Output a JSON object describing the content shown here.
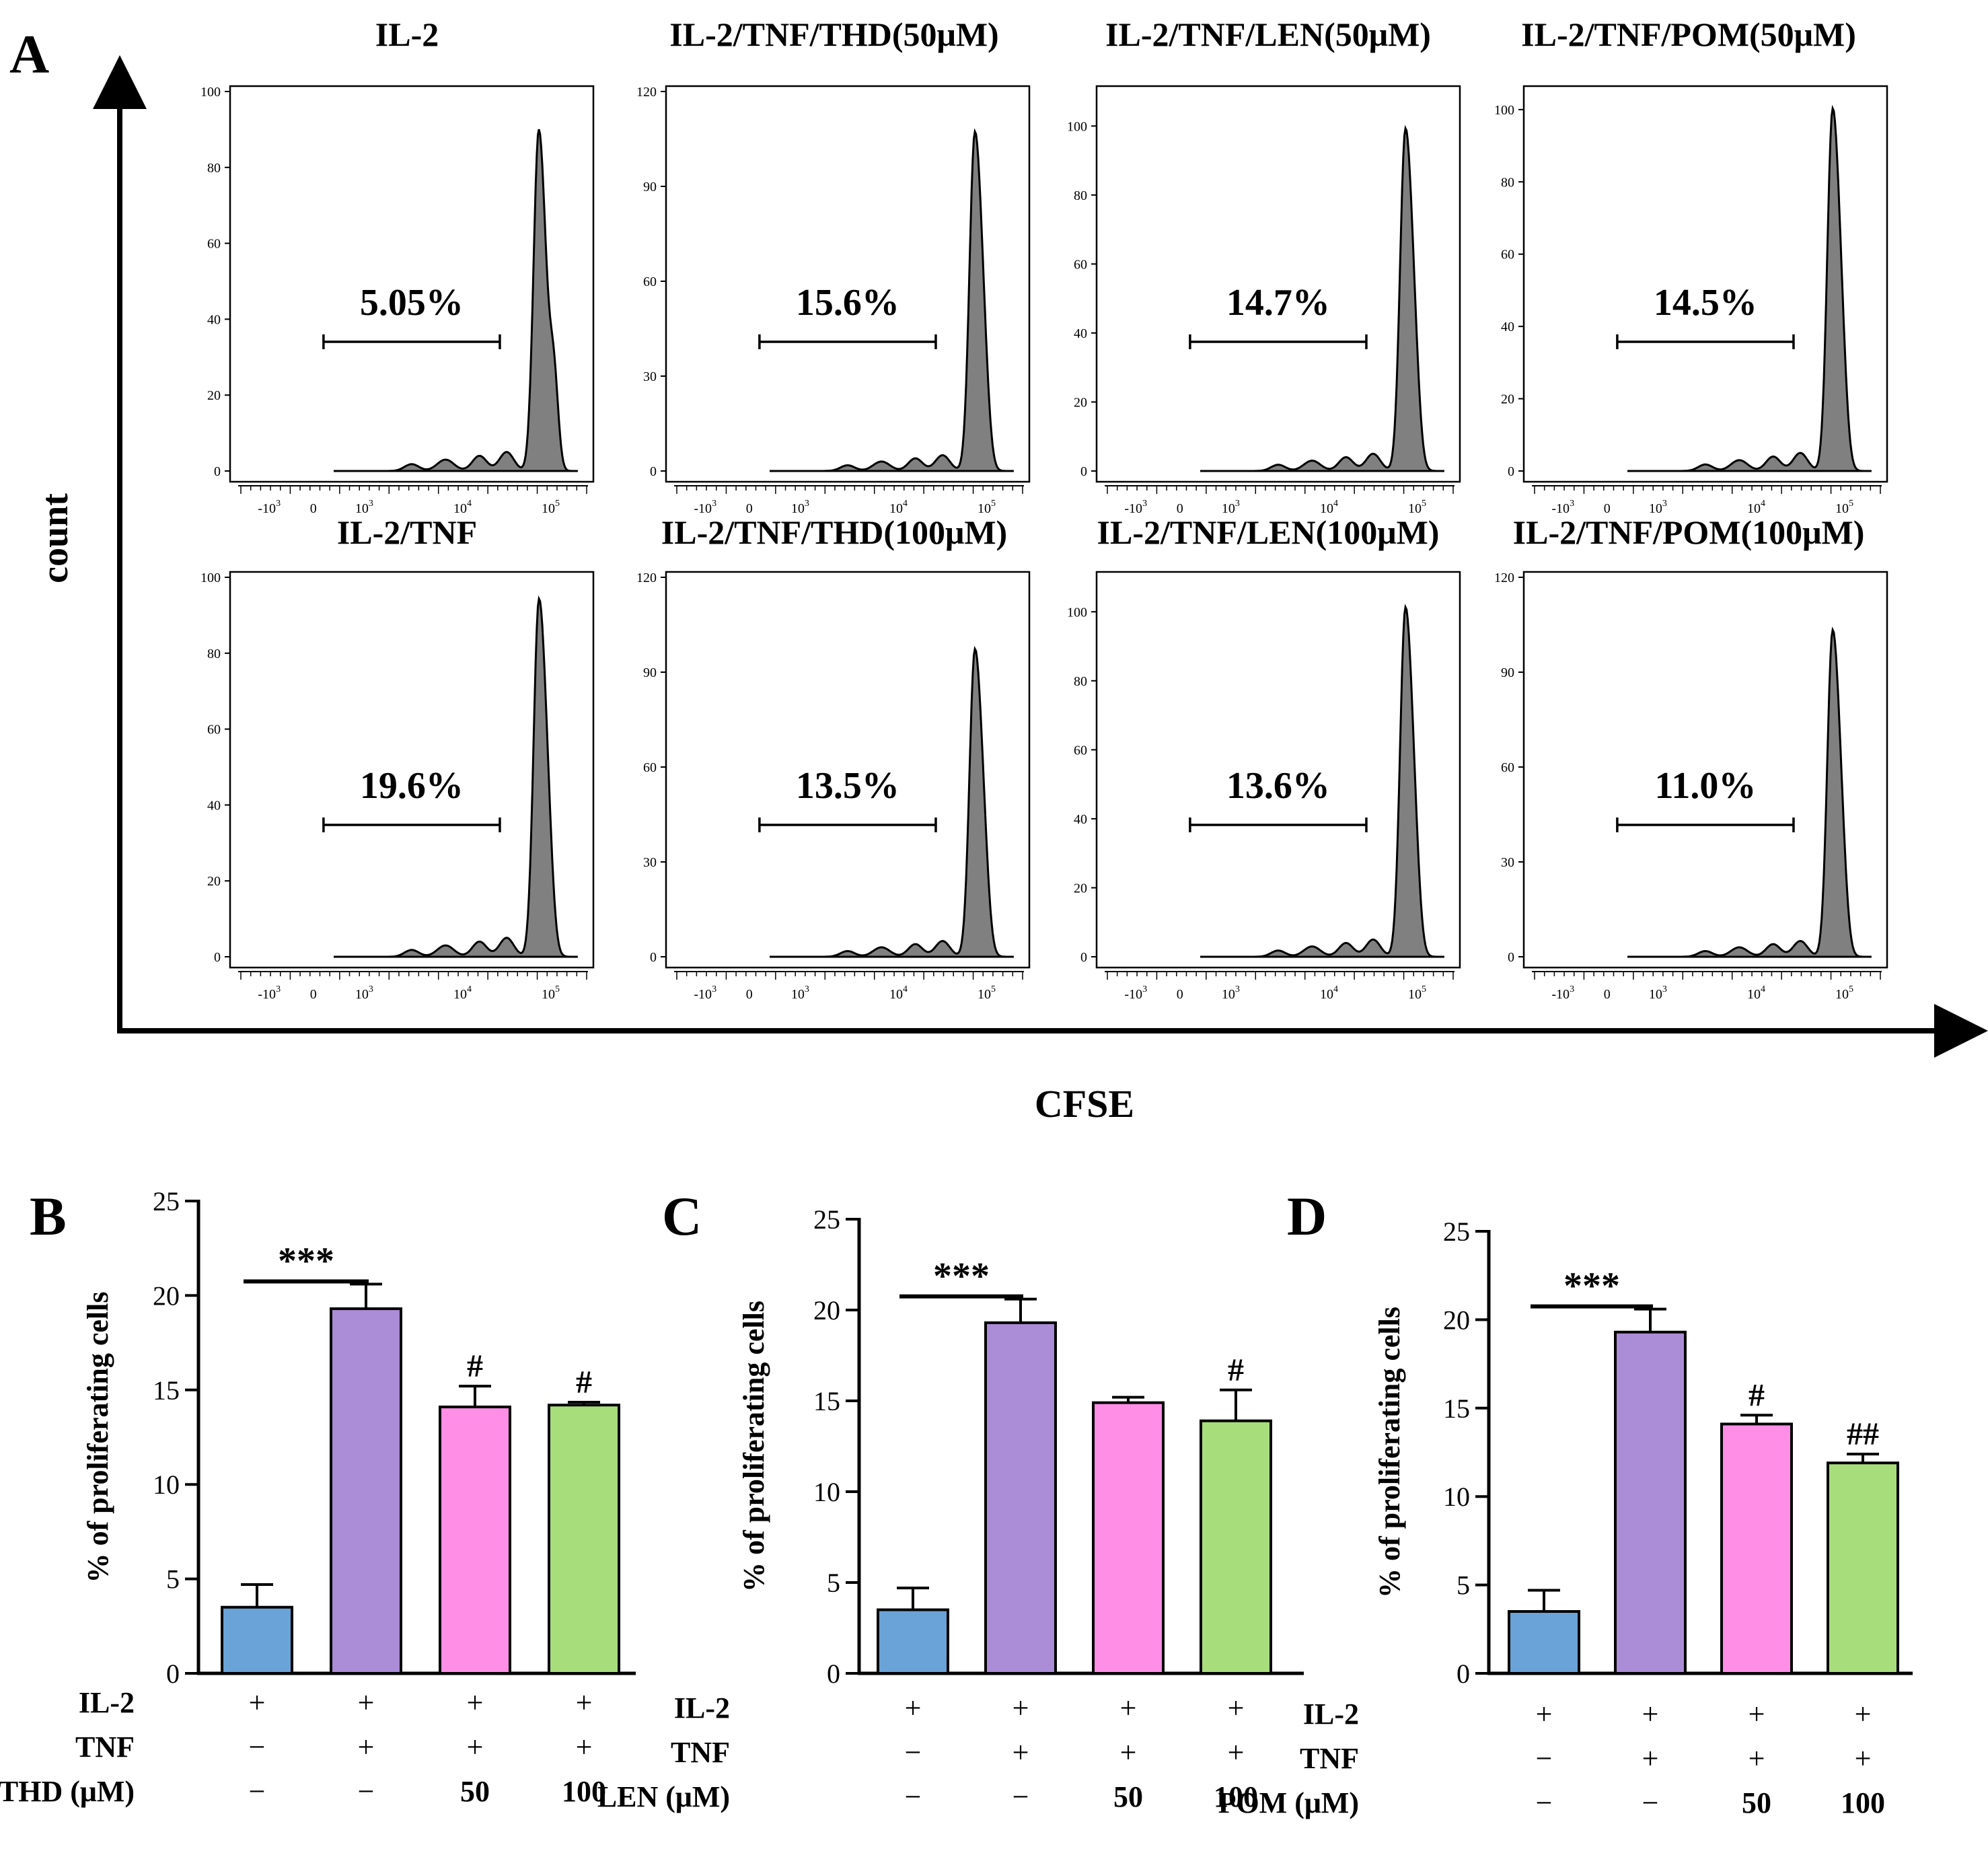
{
  "figure_labels": {
    "A": "A",
    "B": "B",
    "C": "C",
    "D": "D"
  },
  "panel_a": {
    "y_axis_label": "count",
    "x_axis_label": "CFSE"
  },
  "chart_data": [
    {
      "type": "histogram",
      "id": "flow-histograms",
      "x_axis_label": "CFSE",
      "y_axis_label": "count",
      "x_ticks": [
        {
          "base": "-10",
          "exp": "3"
        },
        {
          "base": "0",
          "exp": ""
        },
        {
          "base": "10",
          "exp": "3"
        },
        {
          "base": "10",
          "exp": "4"
        },
        {
          "base": "10",
          "exp": "5"
        }
      ],
      "panels": [
        {
          "title": "IL-2",
          "percent": "5.05%",
          "y_ticks": [
            "0",
            "20",
            "40",
            "60",
            "80",
            "100"
          ],
          "ymax": 100,
          "peak": 90,
          "shoulder": true
        },
        {
          "title": "IL-2/TNF/THD(50μM)",
          "percent": "15.6%",
          "y_ticks": [
            "0",
            "30",
            "60",
            "90",
            "120"
          ],
          "ymax": 120,
          "peak": 106,
          "shoulder": false
        },
        {
          "title": "IL-2/TNF/LEN(50μM)",
          "percent": "14.7%",
          "y_ticks": [
            "0",
            "20",
            "40",
            "60",
            "80",
            "100"
          ],
          "ymax": 110,
          "peak": 98,
          "shoulder": false
        },
        {
          "title": "IL-2/TNF/POM(50μM)",
          "percent": "14.5%",
          "y_ticks": [
            "0",
            "20",
            "40",
            "60",
            "80",
            "100"
          ],
          "ymax": 105,
          "peak": 99,
          "shoulder": false
        },
        {
          "title": "IL-2/TNF",
          "percent": "19.6%",
          "y_ticks": [
            "0",
            "20",
            "40",
            "60",
            "80",
            "100"
          ],
          "ymax": 100,
          "peak": 93,
          "shoulder": false
        },
        {
          "title": "IL-2/TNF/THD(100μM)",
          "percent": "13.5%",
          "y_ticks": [
            "0",
            "30",
            "60",
            "90",
            "120"
          ],
          "ymax": 120,
          "peak": 96,
          "shoulder": false
        },
        {
          "title": "IL-2/TNF/LEN(100μM)",
          "percent": "13.6%",
          "y_ticks": [
            "0",
            "20",
            "40",
            "60",
            "80",
            "100"
          ],
          "ymax": 110,
          "peak": 100,
          "shoulder": false
        },
        {
          "title": "IL-2/TNF/POM(100μM)",
          "percent": "11.0%",
          "y_ticks": [
            "0",
            "30",
            "60",
            "90",
            "120"
          ],
          "ymax": 120,
          "peak": 102,
          "shoulder": false
        }
      ]
    },
    {
      "type": "bar",
      "label": "B",
      "ylabel": "% of proliferating cells",
      "ylim": [
        0,
        25
      ],
      "y_ticks": [
        "0",
        "5",
        "10",
        "15",
        "20",
        "25"
      ],
      "values": [
        3.5,
        19.3,
        14.1,
        14.2
      ],
      "errors": [
        1.2,
        1.3,
        1.1,
        0.15
      ],
      "colors": [
        "#6aa3d8",
        "#ab8cd6",
        "#ff8ee6",
        "#a8dd7c"
      ],
      "significance": {
        "text": "***",
        "from": 0,
        "to": 1
      },
      "markers": [
        "",
        "",
        "#",
        "#"
      ],
      "row_labels": [
        "IL-2",
        "TNF",
        "THD (μM)"
      ],
      "rows": [
        [
          "+",
          "+",
          "+",
          "+"
        ],
        [
          "−",
          "+",
          "+",
          "+"
        ],
        [
          "−",
          "−",
          "50",
          "100"
        ]
      ]
    },
    {
      "type": "bar",
      "label": "C",
      "ylabel": "% of proliferating cells",
      "ylim": [
        0,
        25
      ],
      "y_ticks": [
        "0",
        "5",
        "10",
        "15",
        "20",
        "25"
      ],
      "values": [
        3.5,
        19.3,
        14.9,
        13.9
      ],
      "errors": [
        1.2,
        1.3,
        0.3,
        1.7
      ],
      "colors": [
        "#6aa3d8",
        "#ab8cd6",
        "#ff8ee6",
        "#a8dd7c"
      ],
      "significance": {
        "text": "***",
        "from": 0,
        "to": 1
      },
      "markers": [
        "",
        "",
        "",
        "#"
      ],
      "row_labels": [
        "IL-2",
        "TNF",
        "LEN (μM)"
      ],
      "rows": [
        [
          "+",
          "+",
          "+",
          "+"
        ],
        [
          "−",
          "+",
          "+",
          "+"
        ],
        [
          "−",
          "−",
          "50",
          "100"
        ]
      ]
    },
    {
      "type": "bar",
      "label": "D",
      "ylabel": "% of proliferating cells",
      "ylim": [
        0,
        25
      ],
      "y_ticks": [
        "0",
        "5",
        "10",
        "15",
        "20",
        "25"
      ],
      "values": [
        3.5,
        19.3,
        14.1,
        11.9
      ],
      "errors": [
        1.2,
        1.3,
        0.5,
        0.5
      ],
      "colors": [
        "#6aa3d8",
        "#ab8cd6",
        "#ff8ee6",
        "#a8dd7c"
      ],
      "significance": {
        "text": "***",
        "from": 0,
        "to": 1
      },
      "markers": [
        "",
        "",
        "#",
        "##"
      ],
      "row_labels": [
        "IL-2",
        "TNF",
        "POM (μM)"
      ],
      "rows": [
        [
          "+",
          "+",
          "+",
          "+"
        ],
        [
          "−",
          "+",
          "+",
          "+"
        ],
        [
          "−",
          "−",
          "50",
          "100"
        ]
      ]
    }
  ]
}
